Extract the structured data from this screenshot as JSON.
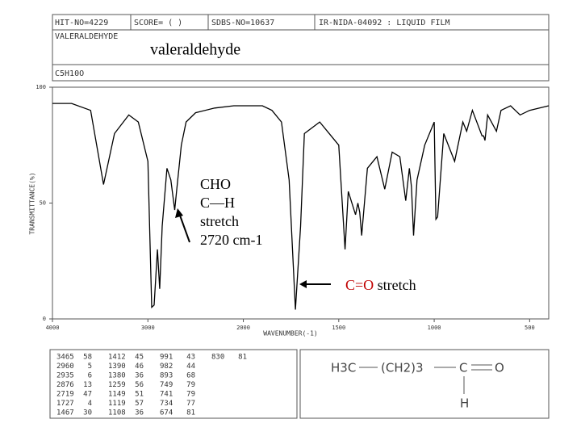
{
  "chart_data": {
    "type": "line",
    "header": {
      "hit_no": "HIT-NO=4229",
      "score": "SCORE=  (  )",
      "sdbs_no": "SDBS-NO=10637",
      "method": "IR-NIDA-04092 : LIQUID FILM",
      "compound": "VALERALDEHYDE",
      "formula": "C5H10O"
    },
    "title": "valeraldehyde",
    "ylabel": "TRANSMITTANCE(%)",
    "xlabel": "WAVENUMBER(-1)",
    "xlim": [
      4000,
      400
    ],
    "xticks": [
      4000,
      3000,
      2000,
      1500,
      1000,
      500
    ],
    "ylim": [
      0,
      100
    ],
    "yticks": [
      0,
      50,
      100
    ],
    "color": "#000000",
    "x": [
      4000,
      3800,
      3600,
      3465,
      3350,
      3200,
      3100,
      3000,
      2960,
      2935,
      2900,
      2876,
      2850,
      2800,
      2760,
      2719,
      2700,
      2650,
      2600,
      2500,
      2300,
      2100,
      2000,
      1900,
      1850,
      1800,
      1760,
      1727,
      1700,
      1680,
      1600,
      1550,
      1500,
      1467,
      1450,
      1412,
      1400,
      1390,
      1380,
      1350,
      1300,
      1259,
      1220,
      1180,
      1149,
      1130,
      1119,
      1108,
      1090,
      1050,
      1000,
      991,
      982,
      950,
      893,
      850,
      830,
      800,
      749,
      741,
      734,
      720,
      674,
      650,
      600,
      550,
      500,
      400
    ],
    "values": [
      93,
      93,
      90,
      58,
      80,
      88,
      85,
      68,
      5,
      6,
      30,
      13,
      40,
      65,
      60,
      47,
      55,
      75,
      85,
      89,
      91,
      92,
      92,
      92,
      90,
      85,
      60,
      4,
      40,
      80,
      85,
      80,
      75,
      30,
      55,
      45,
      50,
      46,
      36,
      65,
      70,
      56,
      72,
      70,
      51,
      65,
      57,
      36,
      60,
      75,
      85,
      43,
      44,
      80,
      68,
      85,
      81,
      90,
      79,
      79,
      77,
      88,
      81,
      90,
      92,
      88,
      90,
      92
    ],
    "annotations": {
      "cho": [
        "CHO",
        "C—H",
        "stretch",
        "2720 cm-1"
      ],
      "co_bond": "C=O",
      "co_text": "stretch"
    },
    "peaks": [
      [
        3465,
        58
      ],
      [
        2960,
        5
      ],
      [
        2935,
        6
      ],
      [
        2876,
        13
      ],
      [
        2719,
        47
      ],
      [
        1727,
        4
      ],
      [
        1467,
        30
      ],
      [
        1412,
        45
      ],
      [
        1390,
        46
      ],
      [
        1380,
        36
      ],
      [
        1259,
        56
      ],
      [
        1149,
        51
      ],
      [
        1119,
        57
      ],
      [
        1108,
        36
      ],
      [
        991,
        43
      ],
      [
        982,
        44
      ],
      [
        893,
        68
      ],
      [
        749,
        79
      ],
      [
        741,
        79
      ],
      [
        734,
        77
      ],
      [
        674,
        81
      ],
      [
        830,
        81
      ]
    ],
    "structure": [
      "H3C",
      "(CH2)3",
      "C",
      "O",
      "H"
    ]
  }
}
